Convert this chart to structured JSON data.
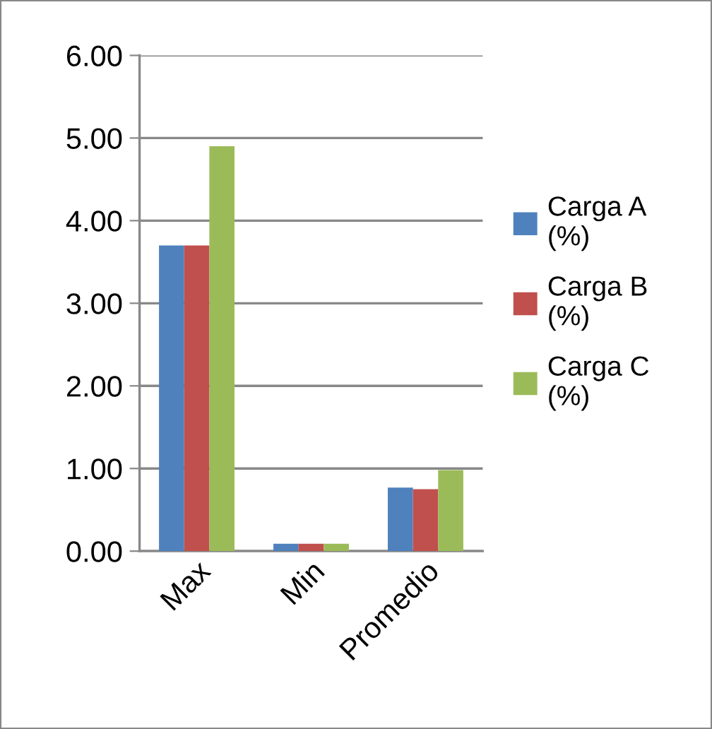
{
  "chart_data": {
    "type": "bar",
    "categories": [
      "Max",
      "Min",
      "Promedio"
    ],
    "series": [
      {
        "name": "Carga A (%)",
        "color": "#4f81bd",
        "values": [
          3.7,
          0.09,
          0.77
        ]
      },
      {
        "name": "Carga B (%)",
        "color": "#c0504d",
        "values": [
          3.7,
          0.09,
          0.75
        ]
      },
      {
        "name": "Carga C (%)",
        "color": "#9bbb59",
        "values": [
          4.9,
          0.09,
          0.98
        ]
      }
    ],
    "ylim": [
      0,
      6
    ],
    "yticks": [
      {
        "value": 0,
        "label": "0.00"
      },
      {
        "value": 1,
        "label": "1.00"
      },
      {
        "value": 2,
        "label": "2.00"
      },
      {
        "value": 3,
        "label": "3.00"
      },
      {
        "value": 4,
        "label": "4.00"
      },
      {
        "value": 5,
        "label": "5.00"
      },
      {
        "value": 6,
        "label": "6.00"
      }
    ],
    "grid": "y",
    "legend": "right"
  }
}
